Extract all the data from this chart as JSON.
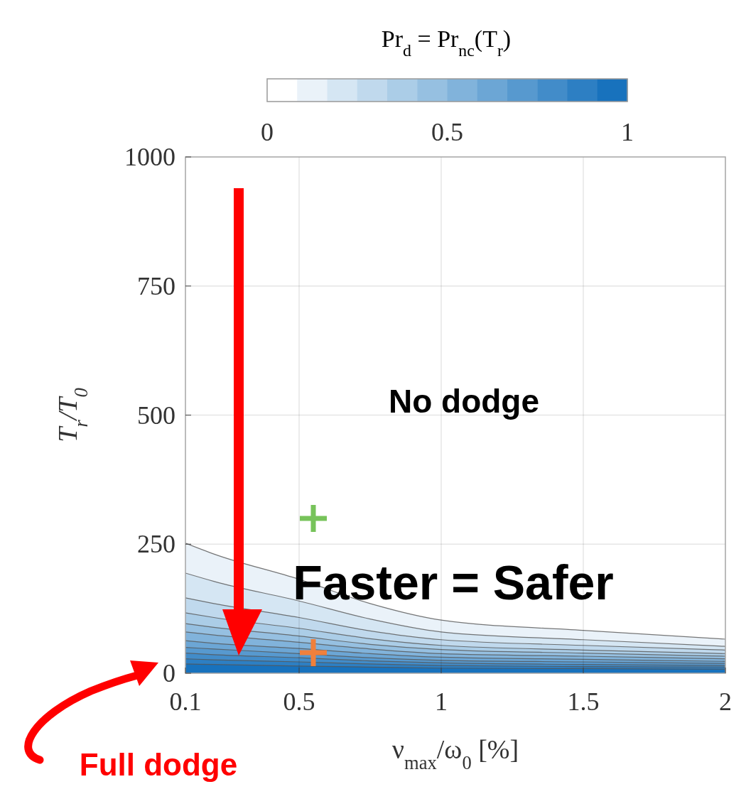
{
  "chart_data": {
    "type": "area",
    "xlabel": "ν$_{max}$/ω$_{0}$ [%]",
    "ylabel": "T$_{r}$/T$_{0}$",
    "clabel": "Pr$_{d}$ = Pr$_{nc}$(T$_{r}$)",
    "clim": [
      0,
      1
    ],
    "cticks": [
      0,
      0.5,
      1
    ],
    "x": [
      0.1,
      0.2,
      0.5,
      0.75,
      1,
      1.5,
      2
    ],
    "xlim": [
      0.1,
      2
    ],
    "xticks": [
      0.1,
      0.5,
      1,
      1.5,
      2
    ],
    "ylim": [
      0,
      1000
    ],
    "yticks": [
      0,
      250,
      500,
      750,
      1000
    ],
    "grid": true,
    "series": [
      {
        "color": "#eaf2f9",
        "values": [
          252,
          231,
          182,
          135,
          103,
          83,
          66
        ]
      },
      {
        "color": "#d5e6f3",
        "values": [
          194,
          178,
          140,
          105,
          80,
          65,
          52
        ]
      },
      {
        "color": "#c0d9ed",
        "values": [
          146,
          135,
          108,
          82,
          65,
          54,
          45
        ]
      },
      {
        "color": "#abcde7",
        "values": [
          117,
          108,
          87,
          67,
          54,
          45,
          38
        ]
      },
      {
        "color": "#96c0e1",
        "values": [
          96,
          89,
          72,
          56,
          46,
          39,
          33
        ]
      },
      {
        "color": "#81b3db",
        "values": [
          80,
          74,
          60,
          47,
          38,
          33,
          28
        ]
      },
      {
        "color": "#6ca6d5",
        "values": [
          63,
          58,
          48,
          38,
          31,
          27,
          23
        ]
      },
      {
        "color": "#5799cf",
        "values": [
          50,
          47,
          38,
          30,
          25,
          22,
          19
        ]
      },
      {
        "color": "#428cc9",
        "values": [
          39,
          36,
          30,
          24,
          20,
          17,
          15
        ]
      },
      {
        "color": "#2d7fc3",
        "values": [
          28,
          26,
          22,
          18,
          15,
          13,
          12
        ]
      },
      {
        "color": "#1872bd",
        "values": [
          18,
          17,
          14,
          12,
          10,
          9,
          8
        ]
      },
      {
        "type": "scatter",
        "x": [
          0.55
        ],
        "values": [
          300
        ],
        "color": "#77c35a",
        "marker": "cross"
      },
      {
        "type": "scatter",
        "x": [
          0.55
        ],
        "values": [
          40
        ],
        "color": "#f0803c",
        "marker": "cross"
      }
    ],
    "annotations": [
      "No dodge",
      "Faster = Safer",
      "Full dodge"
    ]
  }
}
